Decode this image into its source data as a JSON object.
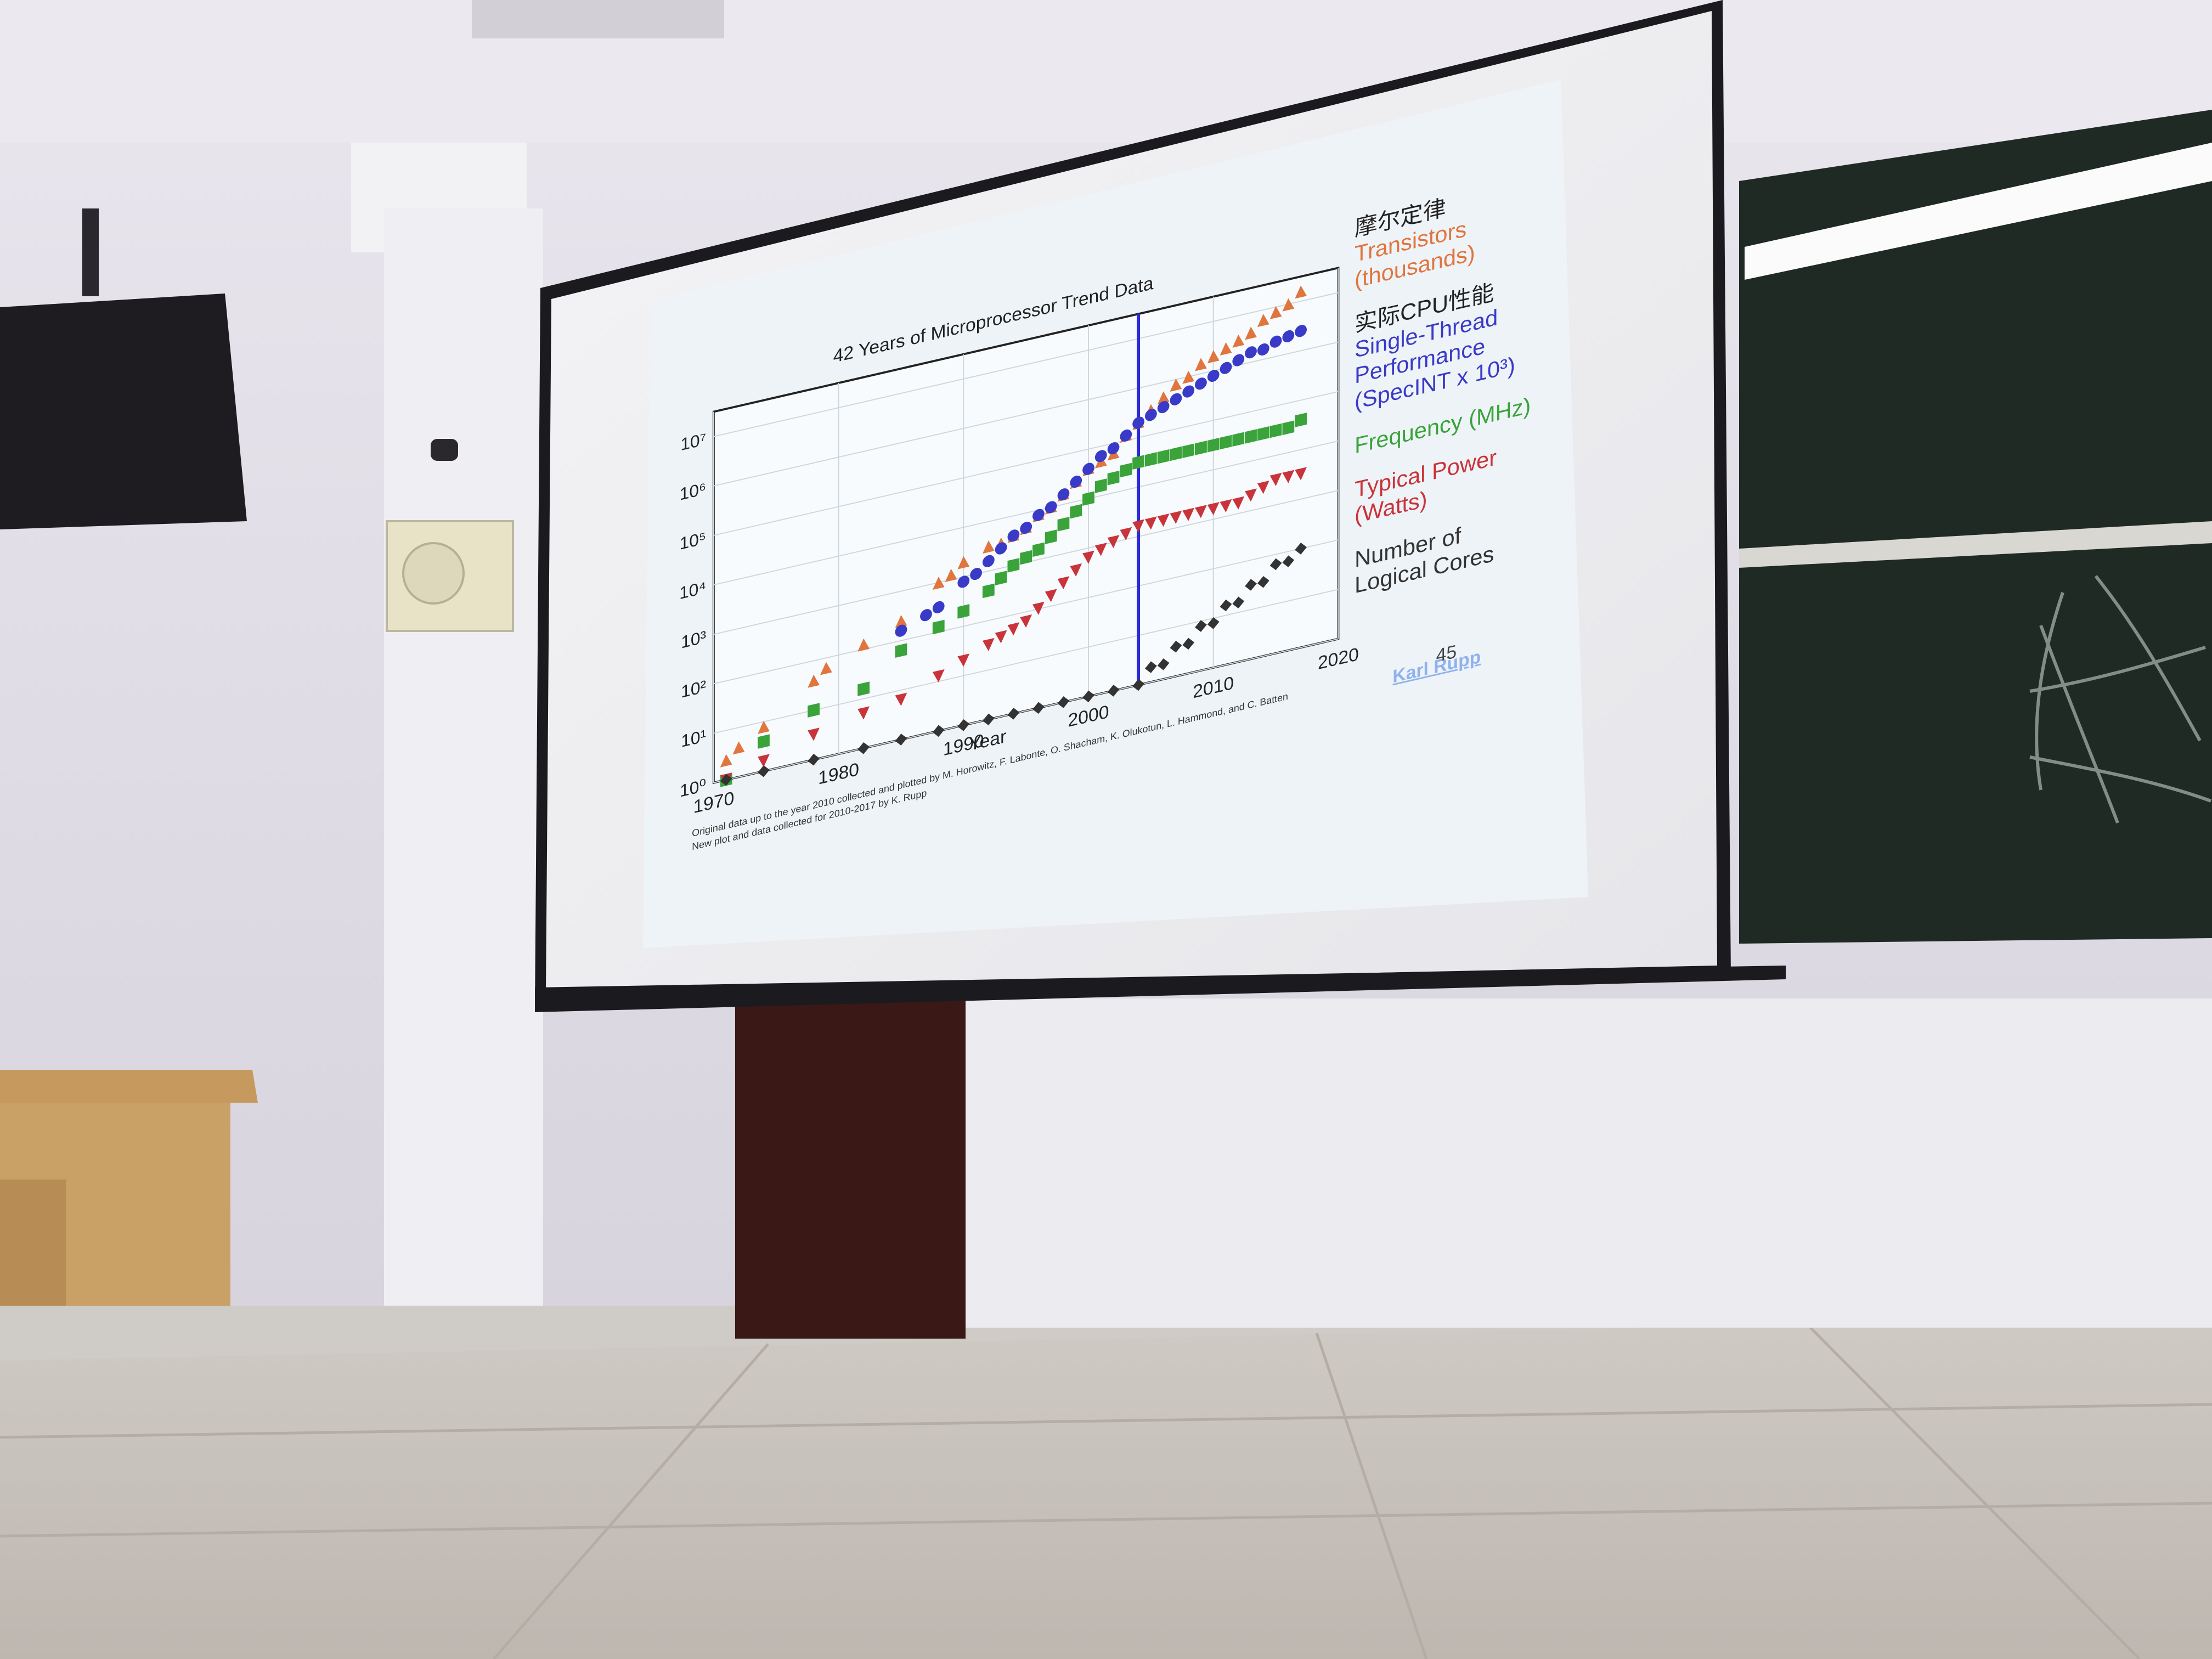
{
  "slide": {
    "title": "42 Years of Microprocessor Trend Data",
    "xlabel": "Year",
    "credit_line1": "Original data up to the year 2010 collected and plotted by M. Horowitz, F. Labonte, O. Shacham, K. Olukotun, L. Hammond, and C. Batten",
    "credit_line2": "New plot and data collected for 2010-2017 by K. Rupp",
    "author_link": "Karl Rupp",
    "page_number": "45",
    "legend": [
      {
        "cn": "摩尔定律",
        "lines": [
          "Transistors",
          "(thousands)"
        ],
        "color": "#e0753e"
      },
      {
        "cn": "实际CPU性能",
        "lines": [
          "Single-Thread",
          "Performance",
          "(SpecINT x 10³)"
        ],
        "color": "#3a3ac8"
      },
      {
        "cn": "",
        "lines": [
          "Frequency (MHz)"
        ],
        "color": "#3aa33a"
      },
      {
        "cn": "",
        "lines": [
          "Typical Power",
          "(Watts)"
        ],
        "color": "#c8343a"
      },
      {
        "cn": "",
        "lines": [
          "Number of",
          "Logical Cores"
        ],
        "color": "#333333"
      }
    ]
  },
  "chart_data": {
    "type": "scatter",
    "title": "42 Years of Microprocessor Trend Data",
    "xlabel": "Year",
    "ylabel": "",
    "xlim": [
      1970,
      2020
    ],
    "ylim": [
      0,
      7.5
    ],
    "yscale": "log10",
    "x_ticks": [
      "1970",
      "1980",
      "1990",
      "2000",
      "2010",
      "2020"
    ],
    "y_ticks": [
      "10⁰",
      "10¹",
      "10²",
      "10³",
      "10⁴",
      "10⁵",
      "10⁶",
      "10⁷"
    ],
    "vertical_marker_year": 2004,
    "series": [
      {
        "name": "Transistors (thousands)",
        "marker": "triangle-up",
        "color": "#e0753e",
        "points": [
          [
            1971,
            0.4
          ],
          [
            1972,
            0.6
          ],
          [
            1974,
            0.9
          ],
          [
            1978,
            1.6
          ],
          [
            1979,
            1.8
          ],
          [
            1982,
            2.1
          ],
          [
            1985,
            2.4
          ],
          [
            1988,
            3.0
          ],
          [
            1989,
            3.1
          ],
          [
            1990,
            3.3
          ],
          [
            1992,
            3.5
          ],
          [
            1993,
            3.5
          ],
          [
            1994,
            3.6
          ],
          [
            1995,
            3.7
          ],
          [
            1996,
            3.9
          ],
          [
            1997,
            4.0
          ],
          [
            1998,
            4.2
          ],
          [
            1999,
            4.4
          ],
          [
            2000,
            4.6
          ],
          [
            2001,
            4.7
          ],
          [
            2002,
            4.8
          ],
          [
            2003,
            5.1
          ],
          [
            2004,
            5.3
          ],
          [
            2005,
            5.5
          ],
          [
            2006,
            5.7
          ],
          [
            2007,
            5.9
          ],
          [
            2008,
            6.0
          ],
          [
            2009,
            6.2
          ],
          [
            2010,
            6.3
          ],
          [
            2011,
            6.4
          ],
          [
            2012,
            6.5
          ],
          [
            2013,
            6.6
          ],
          [
            2014,
            6.8
          ],
          [
            2015,
            6.9
          ],
          [
            2016,
            7.0
          ],
          [
            2017,
            7.2
          ]
        ]
      },
      {
        "name": "Single-Thread Performance (SpecINT x 10³)",
        "marker": "circle",
        "color": "#3a3ac8",
        "points": [
          [
            1985,
            2.2
          ],
          [
            1987,
            2.4
          ],
          [
            1988,
            2.5
          ],
          [
            1990,
            2.9
          ],
          [
            1991,
            3.0
          ],
          [
            1992,
            3.2
          ],
          [
            1993,
            3.4
          ],
          [
            1994,
            3.6
          ],
          [
            1995,
            3.7
          ],
          [
            1996,
            3.9
          ],
          [
            1997,
            4.0
          ],
          [
            1998,
            4.2
          ],
          [
            1999,
            4.4
          ],
          [
            2000,
            4.6
          ],
          [
            2001,
            4.8
          ],
          [
            2002,
            4.9
          ],
          [
            2003,
            5.1
          ],
          [
            2004,
            5.3
          ],
          [
            2005,
            5.4
          ],
          [
            2006,
            5.5
          ],
          [
            2007,
            5.6
          ],
          [
            2008,
            5.7
          ],
          [
            2009,
            5.8
          ],
          [
            2010,
            5.9
          ],
          [
            2011,
            6.0
          ],
          [
            2012,
            6.1
          ],
          [
            2013,
            6.2
          ],
          [
            2014,
            6.2
          ],
          [
            2015,
            6.3
          ],
          [
            2016,
            6.35
          ],
          [
            2017,
            6.4
          ]
        ]
      },
      {
        "name": "Frequency (MHz)",
        "marker": "square",
        "color": "#3aa33a",
        "points": [
          [
            1971,
            0.0
          ],
          [
            1974,
            0.6
          ],
          [
            1978,
            1.0
          ],
          [
            1982,
            1.2
          ],
          [
            1985,
            1.8
          ],
          [
            1988,
            2.1
          ],
          [
            1990,
            2.3
          ],
          [
            1992,
            2.6
          ],
          [
            1993,
            2.8
          ],
          [
            1994,
            3.0
          ],
          [
            1995,
            3.1
          ],
          [
            1996,
            3.2
          ],
          [
            1997,
            3.4
          ],
          [
            1998,
            3.6
          ],
          [
            1999,
            3.8
          ],
          [
            2000,
            4.0
          ],
          [
            2001,
            4.2
          ],
          [
            2002,
            4.3
          ],
          [
            2003,
            4.4
          ],
          [
            2004,
            4.5
          ],
          [
            2005,
            4.5
          ],
          [
            2006,
            4.5
          ],
          [
            2007,
            4.5
          ],
          [
            2008,
            4.5
          ],
          [
            2009,
            4.5
          ],
          [
            2010,
            4.5
          ],
          [
            2011,
            4.5
          ],
          [
            2012,
            4.5
          ],
          [
            2013,
            4.5
          ],
          [
            2014,
            4.5
          ],
          [
            2015,
            4.5
          ],
          [
            2016,
            4.5
          ],
          [
            2017,
            4.6
          ]
        ]
      },
      {
        "name": "Typical Power (Watts)",
        "marker": "triangle-down",
        "color": "#c8343a",
        "points": [
          [
            1971,
            0.0
          ],
          [
            1974,
            0.2
          ],
          [
            1978,
            0.5
          ],
          [
            1982,
            0.7
          ],
          [
            1985,
            0.8
          ],
          [
            1988,
            1.1
          ],
          [
            1990,
            1.3
          ],
          [
            1992,
            1.5
          ],
          [
            1993,
            1.6
          ],
          [
            1994,
            1.7
          ],
          [
            1995,
            1.8
          ],
          [
            1996,
            2.0
          ],
          [
            1997,
            2.2
          ],
          [
            1998,
            2.4
          ],
          [
            1999,
            2.6
          ],
          [
            2000,
            2.8
          ],
          [
            2001,
            2.9
          ],
          [
            2002,
            3.0
          ],
          [
            2003,
            3.1
          ],
          [
            2004,
            3.2
          ],
          [
            2005,
            3.2
          ],
          [
            2006,
            3.2
          ],
          [
            2007,
            3.2
          ],
          [
            2008,
            3.2
          ],
          [
            2009,
            3.2
          ],
          [
            2010,
            3.2
          ],
          [
            2011,
            3.2
          ],
          [
            2012,
            3.2
          ],
          [
            2013,
            3.3
          ],
          [
            2014,
            3.4
          ],
          [
            2015,
            3.5
          ],
          [
            2016,
            3.5
          ],
          [
            2017,
            3.5
          ]
        ]
      },
      {
        "name": "Number of Logical Cores",
        "marker": "diamond",
        "color": "#333333",
        "points": [
          [
            1971,
            0
          ],
          [
            1974,
            0
          ],
          [
            1978,
            0
          ],
          [
            1982,
            0
          ],
          [
            1985,
            0
          ],
          [
            1988,
            0
          ],
          [
            1990,
            0
          ],
          [
            1992,
            0
          ],
          [
            1994,
            0
          ],
          [
            1996,
            0
          ],
          [
            1998,
            0
          ],
          [
            2000,
            0
          ],
          [
            2002,
            0
          ],
          [
            2004,
            0
          ],
          [
            2005,
            0.3
          ],
          [
            2006,
            0.3
          ],
          [
            2007,
            0.6
          ],
          [
            2008,
            0.6
          ],
          [
            2009,
            0.9
          ],
          [
            2010,
            0.9
          ],
          [
            2011,
            1.2
          ],
          [
            2012,
            1.2
          ],
          [
            2013,
            1.5
          ],
          [
            2014,
            1.5
          ],
          [
            2015,
            1.8
          ],
          [
            2016,
            1.8
          ],
          [
            2017,
            2.0
          ]
        ]
      }
    ]
  }
}
